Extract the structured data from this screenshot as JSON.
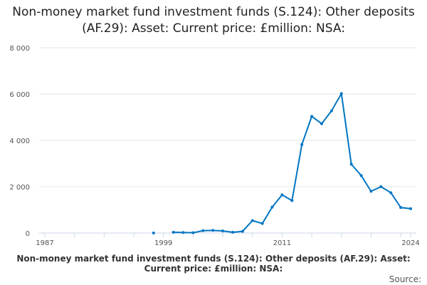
{
  "chart_data": {
    "type": "line",
    "title": "Non-money market fund investment funds (S.124): Other deposits (AF.29): Asset: Current price: £million: NSA:",
    "xlim": [
      1987,
      2024
    ],
    "ylim": [
      0,
      8000
    ],
    "x_ticks": [
      1987,
      1999,
      2011,
      2024
    ],
    "y_ticks": [
      0,
      2000,
      4000,
      6000,
      8000
    ],
    "y_tick_labels": [
      "0",
      "2 000",
      "4 000",
      "6 000",
      "8 000"
    ],
    "grid": "horizontal",
    "color": "#0075c2",
    "x": [
      1998,
      2000,
      2001,
      2002,
      2003,
      2004,
      2005,
      2006,
      2007,
      2008,
      2009,
      2010,
      2011,
      2012,
      2013,
      2014,
      2015,
      2016,
      2017,
      2018,
      2019,
      2020,
      2021,
      2022,
      2023,
      2024
    ],
    "values": [
      0,
      30,
      20,
      10,
      100,
      110,
      90,
      30,
      70,
      535,
      410,
      1120,
      1645,
      1400,
      3820,
      5035,
      4720,
      5275,
      6020,
      2970,
      2480,
      1800,
      2000,
      1740,
      1100,
      1050
    ],
    "footer": "Non-money market fund investment funds (S.124): Other deposits (AF.29): Asset: Current price: £million: NSA:",
    "source": "Source:"
  }
}
